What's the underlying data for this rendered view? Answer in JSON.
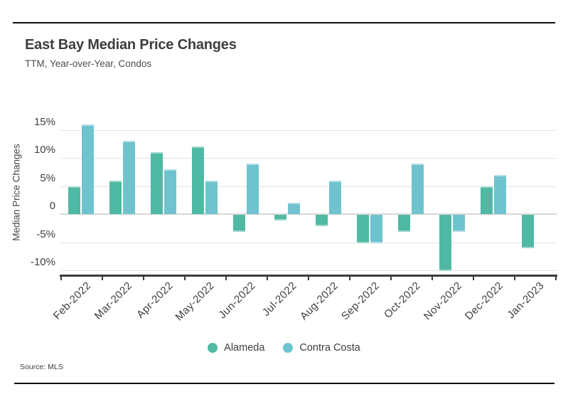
{
  "header": {
    "title": "East Bay Median Price Changes",
    "subtitle": "TTM, Year-over-Year, Condos"
  },
  "source_label": "Source: MLS",
  "chart_data": {
    "type": "bar",
    "title": "East Bay Median Price Changes",
    "subtitle": "TTM, Year-over-Year, Condos",
    "categories": [
      "Feb-2022",
      "Mar-2022",
      "Apr-2022",
      "May-2022",
      "Jun-2022",
      "Jul-2022",
      "Aug-2022",
      "Sep-2022",
      "Oct-2022",
      "Nov-2022",
      "Dec-2022",
      "Jan-2023"
    ],
    "series": [
      {
        "name": "Alameda",
        "color": "#4fb9a4",
        "values": [
          5,
          6,
          11,
          12,
          -3,
          -1,
          -2,
          -5,
          -3,
          -10,
          5,
          -6
        ]
      },
      {
        "name": "Contra Costa",
        "color": "#6fc3ce",
        "values": [
          16,
          13,
          8,
          6,
          9,
          2,
          6,
          -5,
          9,
          -3,
          7,
          null
        ]
      }
    ],
    "xlabel": "",
    "ylabel": "Median Price Changes",
    "y_ticks": [
      "15%",
      "10%",
      "5%",
      "0",
      "-5%",
      "-10%"
    ],
    "y_tick_values": [
      15,
      10,
      5,
      0,
      -5,
      -10
    ],
    "ylim": [
      -11,
      18
    ],
    "unit": "percent",
    "grid": true,
    "legend_position": "bottom"
  }
}
